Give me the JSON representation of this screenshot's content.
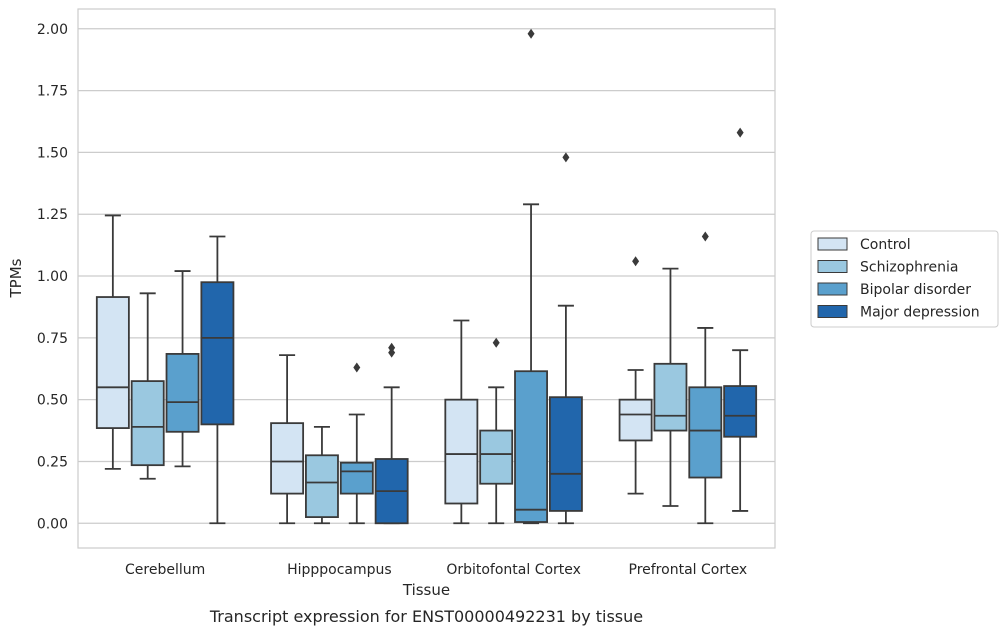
{
  "caption": "Transcript expression for ENST00000492231 by tissue",
  "chart_data": {
    "type": "box",
    "xlabel": "Tissue",
    "ylabel": "TPMs",
    "ylim": [
      -0.1,
      2.08
    ],
    "yticks": [
      "0.00",
      "0.25",
      "0.50",
      "0.75",
      "1.00",
      "1.25",
      "1.50",
      "1.75",
      "2.00"
    ],
    "categories": [
      "Cerebellum",
      "Hipppocampus",
      "Orbitofontal Cortex",
      "Prefrontal Cortex"
    ],
    "grid": "horizontal",
    "legend_position": "right",
    "series": [
      {
        "name": "Control",
        "color": "#d3e4f3",
        "boxes": [
          {
            "min": 0.22,
            "q1": 0.385,
            "median": 0.55,
            "q3": 0.915,
            "max": 1.245,
            "outliers": []
          },
          {
            "min": 0.0,
            "q1": 0.12,
            "median": 0.25,
            "q3": 0.405,
            "max": 0.68,
            "outliers": []
          },
          {
            "min": 0.0,
            "q1": 0.08,
            "median": 0.28,
            "q3": 0.5,
            "max": 0.82,
            "outliers": []
          },
          {
            "min": 0.12,
            "q1": 0.335,
            "median": 0.44,
            "q3": 0.5,
            "max": 0.62,
            "outliers": [
              1.06
            ]
          }
        ]
      },
      {
        "name": "Schizophrenia",
        "color": "#9ac8e0",
        "boxes": [
          {
            "min": 0.18,
            "q1": 0.235,
            "median": 0.39,
            "q3": 0.575,
            "max": 0.93,
            "outliers": []
          },
          {
            "min": 0.0,
            "q1": 0.025,
            "median": 0.165,
            "q3": 0.275,
            "max": 0.39,
            "outliers": []
          },
          {
            "min": 0.0,
            "q1": 0.16,
            "median": 0.28,
            "q3": 0.375,
            "max": 0.55,
            "outliers": [
              0.73
            ]
          },
          {
            "min": 0.07,
            "q1": 0.375,
            "median": 0.435,
            "q3": 0.645,
            "max": 1.03,
            "outliers": []
          }
        ]
      },
      {
        "name": "Bipolar disorder",
        "color": "#5aa0cd",
        "boxes": [
          {
            "min": 0.23,
            "q1": 0.37,
            "median": 0.49,
            "q3": 0.685,
            "max": 1.02,
            "outliers": []
          },
          {
            "min": 0.0,
            "q1": 0.12,
            "median": 0.21,
            "q3": 0.245,
            "max": 0.44,
            "outliers": [
              0.63
            ]
          },
          {
            "min": 0.0,
            "q1": 0.005,
            "median": 0.055,
            "q3": 0.615,
            "max": 1.29,
            "outliers": [
              1.98
            ]
          },
          {
            "min": 0.0,
            "q1": 0.185,
            "median": 0.375,
            "q3": 0.55,
            "max": 0.79,
            "outliers": [
              1.16
            ]
          }
        ]
      },
      {
        "name": "Major depression",
        "color": "#2166ac",
        "boxes": [
          {
            "min": 0.0,
            "q1": 0.4,
            "median": 0.75,
            "q3": 0.975,
            "max": 1.16,
            "outliers": []
          },
          {
            "min": 0.0,
            "q1": 0.0,
            "median": 0.13,
            "q3": 0.26,
            "max": 0.55,
            "outliers": [
              0.69,
              0.71
            ]
          },
          {
            "min": 0.0,
            "q1": 0.05,
            "median": 0.2,
            "q3": 0.51,
            "max": 0.88,
            "outliers": [
              1.48
            ]
          },
          {
            "min": 0.05,
            "q1": 0.35,
            "median": 0.435,
            "q3": 0.555,
            "max": 0.7,
            "outliers": [
              1.58
            ]
          }
        ]
      }
    ]
  }
}
